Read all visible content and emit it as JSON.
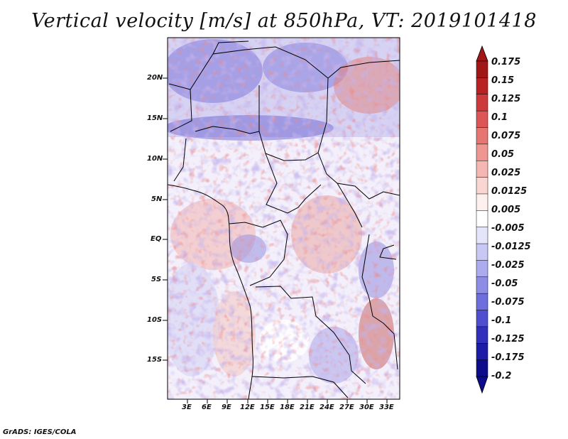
{
  "title": "Vertical velocity [m/s] at 850hPa, VT: 2019101418",
  "credit": "GrADS: IGES/COLA",
  "map": {
    "lat_labels": [
      "20N",
      "15N",
      "10N",
      "5N",
      "EQ",
      "5S",
      "10S",
      "15S"
    ],
    "lon_labels": [
      "3E",
      "6E",
      "9E",
      "12E",
      "15E",
      "18E",
      "21E",
      "24E",
      "27E",
      "30E",
      "33E"
    ]
  },
  "colorbar": {
    "labels": [
      "0.175",
      "0.15",
      "0.125",
      "0.1",
      "0.075",
      "0.05",
      "0.025",
      "0.0125",
      "0.005",
      "-0.005",
      "-0.0125",
      "-0.025",
      "-0.05",
      "-0.075",
      "-0.1",
      "-0.125",
      "-0.175",
      "-0.2"
    ],
    "colors": [
      "#a11617",
      "#b82225",
      "#cc3a3c",
      "#dc5655",
      "#e67672",
      "#ee9792",
      "#f5b7b2",
      "#fad6d2",
      "#fdf0ee",
      "#ffffff",
      "#e4e4fb",
      "#c8c8f5",
      "#ababee",
      "#8d8de6",
      "#6e6edc",
      "#4e4ecf",
      "#3030bd",
      "#1c1ca6",
      "#0d0d8c"
    ],
    "top_color": "#a11617",
    "bottom_color": "#0d0d8c"
  }
}
